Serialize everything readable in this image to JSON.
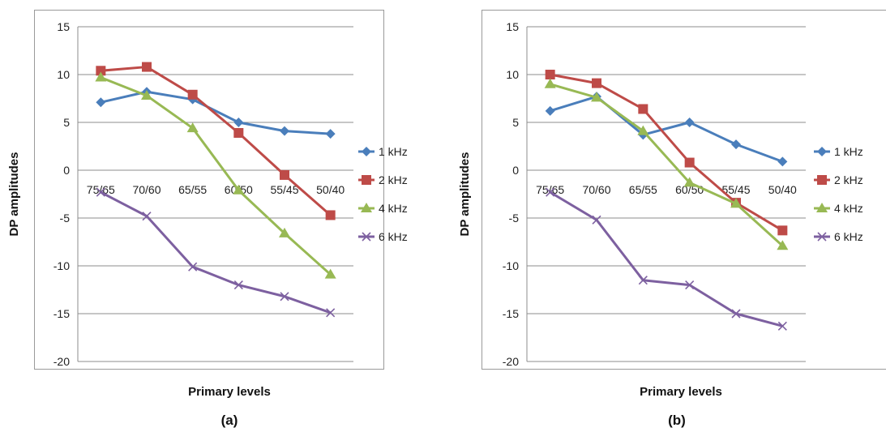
{
  "chart_data": [
    {
      "type": "line",
      "caption": "(a)",
      "xlabel": "Primary levels",
      "ylabel": "DP amplitudes",
      "categories": [
        "75/65",
        "70/60",
        "65/55",
        "60/50",
        "55/45",
        "50/40"
      ],
      "ylim": [
        -20,
        15
      ],
      "yticks": [
        15,
        10,
        5,
        0,
        -5,
        -10,
        -15,
        -20
      ],
      "grid": true,
      "legend_position": "right",
      "series": [
        {
          "name": "1 kHz",
          "color": "#4a7ebb",
          "marker": "diamond",
          "values": [
            7.1,
            8.2,
            7.4,
            5.0,
            4.1,
            3.8
          ]
        },
        {
          "name": "2 kHz",
          "color": "#be4b48",
          "marker": "square",
          "values": [
            10.4,
            10.8,
            7.9,
            3.9,
            -0.5,
            -4.7
          ]
        },
        {
          "name": "4 kHz",
          "color": "#98b954",
          "marker": "triangle",
          "values": [
            9.7,
            7.8,
            4.4,
            -2.1,
            -6.6,
            -10.9
          ]
        },
        {
          "name": "6 kHz",
          "color": "#7d60a0",
          "marker": "x",
          "values": [
            -2.3,
            -4.8,
            -10.1,
            -12.0,
            -13.2,
            -14.9
          ]
        }
      ]
    },
    {
      "type": "line",
      "caption": "(b)",
      "xlabel": "Primary levels",
      "ylabel": "DP amplitudes",
      "categories": [
        "75/65",
        "70/60",
        "65/55",
        "60/50",
        "55/45",
        "50/40"
      ],
      "ylim": [
        -20,
        15
      ],
      "yticks": [
        15,
        10,
        5,
        0,
        -5,
        -10,
        -15,
        -20
      ],
      "grid": true,
      "legend_position": "right",
      "series": [
        {
          "name": "1 kHz",
          "color": "#4a7ebb",
          "marker": "diamond",
          "values": [
            6.2,
            7.7,
            3.7,
            5.0,
            2.7,
            0.9
          ]
        },
        {
          "name": "2 kHz",
          "color": "#be4b48",
          "marker": "square",
          "values": [
            10.0,
            9.1,
            6.4,
            0.8,
            -3.4,
            -6.3
          ]
        },
        {
          "name": "4 kHz",
          "color": "#98b954",
          "marker": "triangle",
          "values": [
            9.0,
            7.6,
            4.1,
            -1.3,
            -3.5,
            -7.9
          ]
        },
        {
          "name": "6 kHz",
          "color": "#7d60a0",
          "marker": "x",
          "values": [
            -2.3,
            -5.2,
            -11.5,
            -12.0,
            -15.0,
            -16.3
          ]
        }
      ]
    }
  ]
}
